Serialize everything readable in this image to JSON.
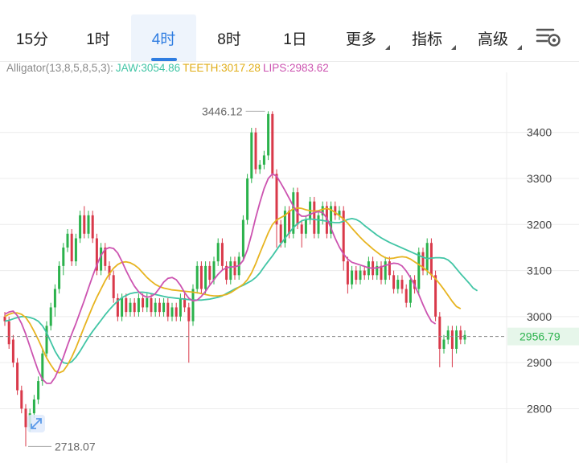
{
  "tabs": [
    {
      "label": "15分",
      "active": false,
      "dropdown": false
    },
    {
      "label": "1时",
      "active": false,
      "dropdown": false
    },
    {
      "label": "4时",
      "active": true,
      "dropdown": false
    },
    {
      "label": "8时",
      "active": false,
      "dropdown": false
    },
    {
      "label": "1日",
      "active": false,
      "dropdown": false
    },
    {
      "label": "更多",
      "active": false,
      "dropdown": true
    },
    {
      "label": "指标",
      "active": false,
      "dropdown": true
    },
    {
      "label": "高级",
      "active": false,
      "dropdown": true
    }
  ],
  "settings_icon": "chart-settings-icon",
  "indicator": {
    "name": "Alligator(13,8,5,8,5,3):",
    "jaw_label": "JAW:3054.86",
    "teeth_label": "TEETH:3017.28",
    "lips_label": "LIPS:2983.62"
  },
  "colors": {
    "up": "#2bb24c",
    "down": "#d9394a",
    "jaw": "#41c5a5",
    "teeth": "#e7b420",
    "lips": "#cc53b0",
    "accent": "#2f7de1",
    "price_tag": "#2bb24c",
    "grid": "#ececec",
    "axis_text": "#444444"
  },
  "chart_data": {
    "type": "candlestick",
    "ylim": [
      2710,
      3520
    ],
    "y_ticks": [
      2800,
      2900,
      3000,
      3100,
      3200,
      3300,
      3400
    ],
    "y_tick_labels": [
      "2800",
      "2900",
      "3000",
      "3100",
      "3200",
      "3300",
      "3400"
    ],
    "current_price": 2956.79,
    "current_price_label": "2956.79",
    "high_marker": {
      "value": 3446.12,
      "label": "3446.12",
      "index": 63
    },
    "low_marker": {
      "value": 2718.07,
      "label": "2718.07",
      "index": 5
    },
    "candles": [
      [
        3000,
        2990,
        3010,
        2980
      ],
      [
        2990,
        2940,
        3000,
        2930
      ],
      [
        2950,
        2900,
        2960,
        2890
      ],
      [
        2900,
        2840,
        2910,
        2830
      ],
      [
        2840,
        2800,
        2850,
        2790
      ],
      [
        2800,
        2760,
        2810,
        2718
      ],
      [
        2760,
        2790,
        2800,
        2750
      ],
      [
        2790,
        2820,
        2830,
        2780
      ],
      [
        2820,
        2860,
        2870,
        2810
      ],
      [
        2860,
        2920,
        2930,
        2850
      ],
      [
        2920,
        2980,
        2990,
        2910
      ],
      [
        2980,
        3020,
        3030,
        2970
      ],
      [
        3020,
        3060,
        3070,
        3000
      ],
      [
        3060,
        3110,
        3120,
        3050
      ],
      [
        3110,
        3150,
        3160,
        3090
      ],
      [
        3150,
        3180,
        3190,
        3140
      ],
      [
        3180,
        3120,
        3190,
        3110
      ],
      [
        3120,
        3170,
        3180,
        3110
      ],
      [
        3170,
        3220,
        3230,
        3160
      ],
      [
        3220,
        3180,
        3240,
        3170
      ],
      [
        3180,
        3220,
        3230,
        3170
      ],
      [
        3220,
        3170,
        3230,
        3160
      ],
      [
        3170,
        3100,
        3180,
        3090
      ],
      [
        3100,
        3150,
        3160,
        3090
      ],
      [
        3150,
        3110,
        3160,
        3100
      ],
      [
        3110,
        3090,
        3120,
        3080
      ],
      [
        3090,
        3040,
        3100,
        3030
      ],
      [
        3040,
        3000,
        3050,
        2990
      ],
      [
        3000,
        3040,
        3050,
        2990
      ],
      [
        3040,
        3010,
        3050,
        3000
      ],
      [
        3010,
        3030,
        3040,
        3000
      ],
      [
        3030,
        3010,
        3040,
        3000
      ],
      [
        3010,
        3040,
        3050,
        3000
      ],
      [
        3040,
        3020,
        3050,
        3010
      ],
      [
        3020,
        3040,
        3050,
        3010
      ],
      [
        3040,
        3010,
        3050,
        3000
      ],
      [
        3010,
        3030,
        3040,
        3000
      ],
      [
        3030,
        3010,
        3040,
        3000
      ],
      [
        3010,
        3030,
        3040,
        3000
      ],
      [
        3030,
        3000,
        3040,
        2990
      ],
      [
        3000,
        3020,
        3030,
        2990
      ],
      [
        3020,
        3000,
        3030,
        2990
      ],
      [
        3000,
        3040,
        3050,
        2990
      ],
      [
        3040,
        3020,
        3050,
        3010
      ],
      [
        3020,
        2990,
        3030,
        2900
      ],
      [
        2990,
        3060,
        3070,
        2980
      ],
      [
        3060,
        3110,
        3120,
        3050
      ],
      [
        3110,
        3060,
        3120,
        3050
      ],
      [
        3060,
        3110,
        3120,
        3050
      ],
      [
        3110,
        3080,
        3120,
        3070
      ],
      [
        3080,
        3120,
        3130,
        3070
      ],
      [
        3120,
        3160,
        3170,
        3110
      ],
      [
        3160,
        3110,
        3170,
        3100
      ],
      [
        3110,
        3080,
        3120,
        3070
      ],
      [
        3080,
        3120,
        3130,
        3070
      ],
      [
        3120,
        3090,
        3130,
        3080
      ],
      [
        3090,
        3130,
        3140,
        3080
      ],
      [
        3130,
        3210,
        3220,
        3120
      ],
      [
        3210,
        3300,
        3310,
        3200
      ],
      [
        3300,
        3400,
        3410,
        3290
      ],
      [
        3400,
        3320,
        3410,
        3310
      ],
      [
        3320,
        3330,
        3340,
        3310
      ],
      [
        3330,
        3350,
        3360,
        3320
      ],
      [
        3350,
        3440,
        3446.12,
        3340
      ],
      [
        3440,
        3310,
        3446,
        3300
      ],
      [
        3310,
        3200,
        3320,
        3150
      ],
      [
        3200,
        3160,
        3210,
        3150
      ],
      [
        3160,
        3230,
        3240,
        3150
      ],
      [
        3230,
        3180,
        3240,
        3170
      ],
      [
        3180,
        3270,
        3280,
        3170
      ],
      [
        3270,
        3200,
        3280,
        3190
      ],
      [
        3200,
        3180,
        3210,
        3150
      ],
      [
        3180,
        3210,
        3220,
        3170
      ],
      [
        3210,
        3250,
        3260,
        3200
      ],
      [
        3250,
        3180,
        3260,
        3170
      ],
      [
        3180,
        3220,
        3230,
        3170
      ],
      [
        3220,
        3240,
        3250,
        3200
      ],
      [
        3240,
        3180,
        3250,
        3170
      ],
      [
        3180,
        3240,
        3250,
        3170
      ],
      [
        3240,
        3220,
        3250,
        3210
      ],
      [
        3220,
        3230,
        3240,
        3210
      ],
      [
        3230,
        3120,
        3240,
        3100
      ],
      [
        3120,
        3070,
        3130,
        3050
      ],
      [
        3070,
        3100,
        3110,
        3060
      ],
      [
        3100,
        3080,
        3110,
        3070
      ],
      [
        3080,
        3100,
        3110,
        3070
      ],
      [
        3100,
        3090,
        3110,
        3080
      ],
      [
        3090,
        3120,
        3130,
        3080
      ],
      [
        3120,
        3090,
        3130,
        3080
      ],
      [
        3090,
        3110,
        3120,
        3080
      ],
      [
        3110,
        3080,
        3120,
        3070
      ],
      [
        3080,
        3120,
        3130,
        3070
      ],
      [
        3120,
        3090,
        3130,
        3080
      ],
      [
        3090,
        3060,
        3100,
        3050
      ],
      [
        3060,
        3080,
        3090,
        3050
      ],
      [
        3080,
        3060,
        3090,
        3050
      ],
      [
        3060,
        3030,
        3070,
        3020
      ],
      [
        3030,
        3080,
        3090,
        3020
      ],
      [
        3080,
        3060,
        3090,
        3050
      ],
      [
        3060,
        3140,
        3150,
        3050
      ],
      [
        3140,
        3100,
        3150,
        3090
      ],
      [
        3100,
        3160,
        3170,
        3090
      ],
      [
        3160,
        3090,
        3170,
        3080
      ],
      [
        3090,
        3000,
        3100,
        2990
      ],
      [
        3000,
        2930,
        3010,
        2890
      ],
      [
        2930,
        2950,
        2960,
        2920
      ],
      [
        2950,
        2970,
        2980,
        2940
      ],
      [
        2970,
        2930,
        2980,
        2890
      ],
      [
        2930,
        2970,
        2980,
        2920
      ],
      [
        2970,
        2950,
        2980,
        2940
      ],
      [
        2950,
        2960,
        2970,
        2940
      ]
    ],
    "jaw": [
      2990,
      2992,
      2995,
      2998,
      3000,
      3000,
      2998,
      2995,
      2990,
      2980,
      2965,
      2945,
      2925,
      2910,
      2900,
      2898,
      2902,
      2912,
      2925,
      2940,
      2955,
      2968,
      2980,
      2992,
      3004,
      3015,
      3025,
      3034,
      3041,
      3046,
      3050,
      3052,
      3053,
      3053,
      3052,
      3050,
      3048,
      3046,
      3044,
      3042,
      3041,
      3040,
      3039,
      3038,
      3037,
      3036,
      3036,
      3036,
      3037,
      3038,
      3040,
      3042,
      3045,
      3050,
      3055,
      3060,
      3064,
      3068,
      3073,
      3078,
      3085,
      3095,
      3108,
      3120,
      3132,
      3145,
      3158,
      3170,
      3182,
      3193,
      3202,
      3208,
      3211,
      3212,
      3211,
      3210,
      3209,
      3207,
      3205,
      3204,
      3204,
      3207,
      3211,
      3213,
      3211,
      3206,
      3198,
      3191,
      3184,
      3177,
      3171,
      3166,
      3161,
      3157,
      3153,
      3149,
      3145,
      3141,
      3137,
      3133,
      3129,
      3126,
      3127,
      3128,
      3128,
      3127,
      3123,
      3115,
      3104,
      3093,
      3083,
      3073,
      3062,
      3056
    ],
    "teeth": [
      3000,
      3005,
      3008,
      3008,
      3005,
      2998,
      2985,
      2968,
      2950,
      2930,
      2910,
      2895,
      2882,
      2878,
      2882,
      2895,
      2912,
      2932,
      2955,
      2978,
      3000,
      3022,
      3042,
      3060,
      3078,
      3093,
      3105,
      3113,
      3118,
      3119,
      3117,
      3112,
      3105,
      3095,
      3085,
      3077,
      3070,
      3065,
      3062,
      3060,
      3058,
      3057,
      3056,
      3055,
      3054,
      3053,
      3052,
      3050,
      3048,
      3046,
      3045,
      3045,
      3046,
      3048,
      3052,
      3058,
      3064,
      3070,
      3080,
      3095,
      3115,
      3138,
      3160,
      3182,
      3200,
      3210,
      3215,
      3220,
      3228,
      3234,
      3236,
      3235,
      3232,
      3230,
      3229,
      3230,
      3233,
      3235,
      3232,
      3226,
      3219,
      3212,
      3203,
      3192,
      3182,
      3172,
      3163,
      3155,
      3147,
      3140,
      3133,
      3128,
      3126,
      3127,
      3129,
      3130,
      3129,
      3125,
      3119,
      3113,
      3107,
      3099,
      3091,
      3082,
      3071,
      3059,
      3046,
      3033,
      3022,
      3017
    ],
    "lips": [
      3005,
      3010,
      3012,
      3002,
      2985,
      2962,
      2935,
      2908,
      2882,
      2864,
      2855,
      2855,
      2868,
      2888,
      2912,
      2938,
      2962,
      2985,
      3010,
      3035,
      3062,
      3088,
      3112,
      3133,
      3146,
      3150,
      3148,
      3138,
      3120,
      3100,
      3082,
      3066,
      3054,
      3046,
      3042,
      3044,
      3050,
      3062,
      3075,
      3083,
      3085,
      3080,
      3068,
      3052,
      3040,
      3034,
      3036,
      3044,
      3055,
      3068,
      3080,
      3092,
      3101,
      3106,
      3108,
      3108,
      3111,
      3122,
      3145,
      3178,
      3215,
      3248,
      3278,
      3300,
      3310,
      3305,
      3290,
      3274,
      3257,
      3240,
      3225,
      3218,
      3218,
      3222,
      3226,
      3228,
      3226,
      3214,
      3192,
      3170,
      3151,
      3136,
      3125,
      3118,
      3115,
      3112,
      3109,
      3106,
      3105,
      3106,
      3108,
      3111,
      3114,
      3116,
      3115,
      3110,
      3099,
      3085,
      3068,
      3048,
      3026,
      3006,
      2990,
      2984
    ]
  }
}
